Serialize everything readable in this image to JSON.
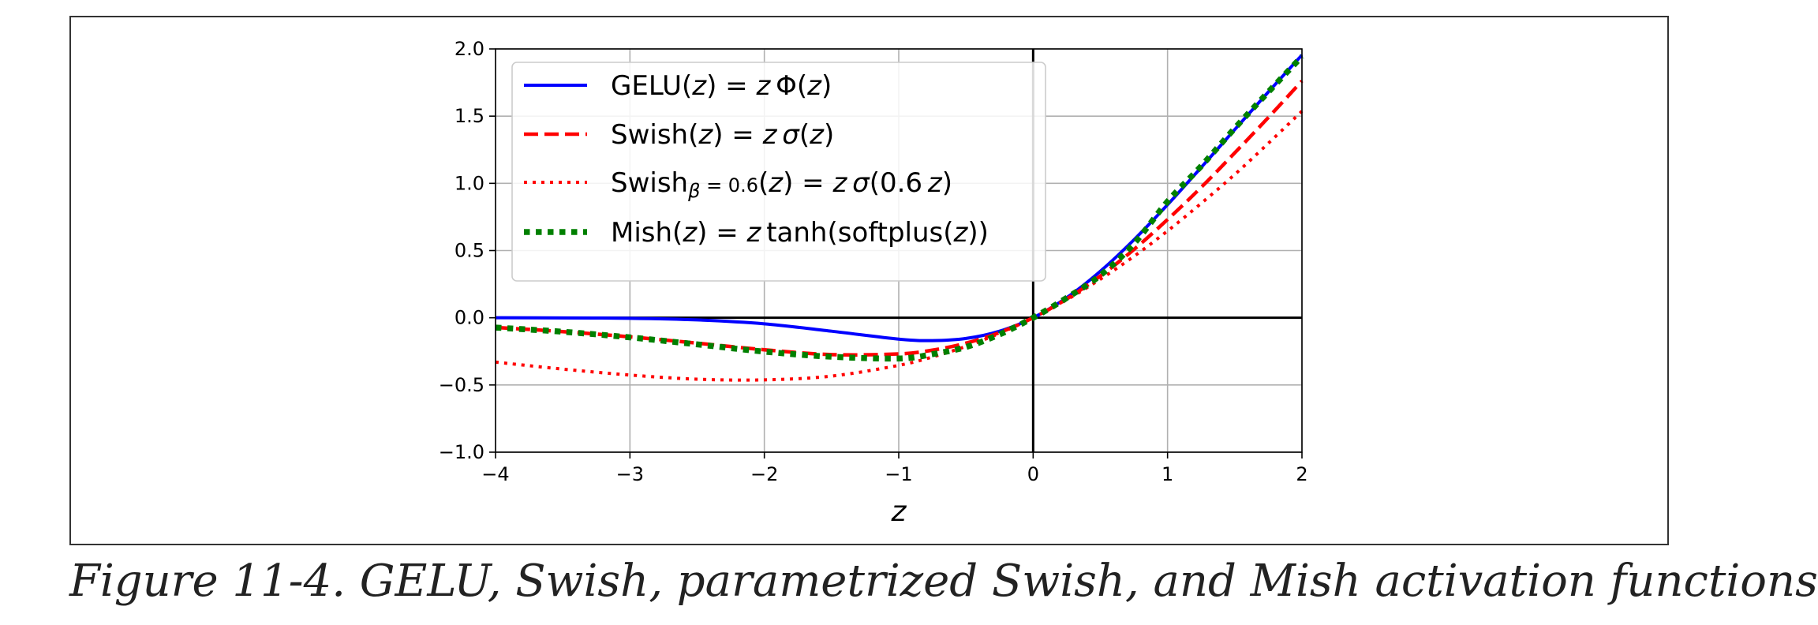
{
  "caption": "Figure 11-4. GELU, Swish, parametrized Swish, and Mish activation functions",
  "chart_data": {
    "type": "line",
    "xlabel": "z",
    "ylabel": "",
    "xlim": [
      -4,
      2
    ],
    "ylim": [
      -1.0,
      2.0
    ],
    "xticks": [
      -4,
      -3,
      -2,
      -1,
      0,
      1,
      2
    ],
    "xtick_labels": [
      "−4",
      "−3",
      "−2",
      "−1",
      "0",
      "1",
      "2"
    ],
    "yticks": [
      -1.0,
      -0.5,
      0.0,
      0.5,
      1.0,
      1.5,
      2.0
    ],
    "ytick_labels": [
      "−1.0",
      "−0.5",
      "0.0",
      "0.5",
      "1.0",
      "1.5",
      "2.0"
    ],
    "grid": true,
    "legend_position": "top-left",
    "x": [
      -4,
      -3.5,
      -3,
      -2.5,
      -2,
      -1.5,
      -1,
      -0.75,
      -0.5,
      -0.25,
      0,
      0.25,
      0.5,
      0.75,
      1,
      1.25,
      1.5,
      1.75,
      2
    ],
    "series": [
      {
        "name": "GELU",
        "legend_parts": [
          {
            "t": "GELU("
          },
          {
            "t": "z",
            "i": true
          },
          {
            "t": ") = "
          },
          {
            "t": "z",
            "i": true
          },
          {
            "t": " Φ("
          },
          {
            "t": "z",
            "i": true
          },
          {
            "t": ")"
          }
        ],
        "color": "#0000ff",
        "style": "solid",
        "values": [
          0.0,
          -0.001,
          -0.004,
          -0.016,
          -0.045,
          -0.1,
          -0.159,
          -0.17,
          -0.154,
          -0.1,
          0.0,
          0.15,
          0.346,
          0.58,
          0.841,
          1.118,
          1.4,
          1.68,
          1.955
        ]
      },
      {
        "name": "Swish",
        "legend_parts": [
          {
            "t": "Swish("
          },
          {
            "t": "z",
            "i": true
          },
          {
            "t": ") = "
          },
          {
            "t": "z",
            "i": true
          },
          {
            "t": " "
          },
          {
            "t": "σ",
            "i": true
          },
          {
            "t": "("
          },
          {
            "t": "z",
            "i": true
          },
          {
            "t": ")"
          }
        ],
        "color": "#ff0000",
        "style": "dashed",
        "values": [
          -0.072,
          -0.103,
          -0.142,
          -0.189,
          -0.238,
          -0.274,
          -0.269,
          -0.241,
          -0.189,
          -0.11,
          0.0,
          0.14,
          0.311,
          0.508,
          0.731,
          0.97,
          1.227,
          1.49,
          1.762
        ]
      },
      {
        "name": "Swish β = 0.6",
        "legend_parts": [
          {
            "t": "Swish"
          },
          {
            "t": "β",
            "i": true,
            "sub": true
          },
          {
            "t": " = 0.6",
            "sub": true
          },
          {
            "t": "("
          },
          {
            "t": "z",
            "i": true
          },
          {
            "t": ") = "
          },
          {
            "t": "z",
            "i": true
          },
          {
            "t": " "
          },
          {
            "t": "σ",
            "i": true
          },
          {
            "t": "(0.6 "
          },
          {
            "t": "z",
            "i": true
          },
          {
            "t": ")"
          }
        ],
        "color": "#ff0000",
        "style": "dotted",
        "values": [
          -0.33,
          -0.382,
          -0.426,
          -0.457,
          -0.462,
          -0.434,
          -0.354,
          -0.292,
          -0.213,
          -0.116,
          0.0,
          0.134,
          0.287,
          0.457,
          0.646,
          0.851,
          1.066,
          1.298,
          1.537
        ]
      },
      {
        "name": "Mish",
        "legend_parts": [
          {
            "t": "Mish("
          },
          {
            "t": "z",
            "i": true
          },
          {
            "t": ") = "
          },
          {
            "t": "z",
            "i": true
          },
          {
            "t": " tanh(softplus("
          },
          {
            "t": "z",
            "i": true
          },
          {
            "t": "))"
          }
        ],
        "color": "#008000",
        "style": "thick-dotted",
        "values": [
          -0.073,
          -0.104,
          -0.146,
          -0.198,
          -0.252,
          -0.29,
          -0.303,
          -0.271,
          -0.218,
          -0.124,
          0.0,
          0.148,
          0.316,
          0.551,
          0.865,
          1.128,
          1.41,
          1.68,
          1.944
        ]
      }
    ]
  }
}
